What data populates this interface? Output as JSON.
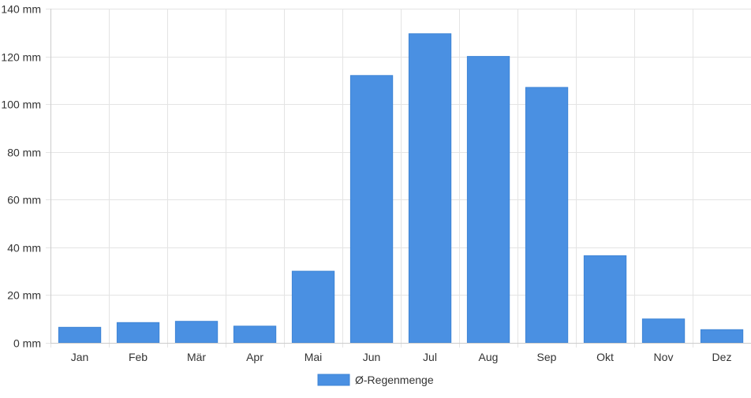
{
  "chart_data": {
    "type": "bar",
    "categories": [
      "Jan",
      "Feb",
      "Mär",
      "Apr",
      "Mai",
      "Jun",
      "Jul",
      "Aug",
      "Sep",
      "Okt",
      "Nov",
      "Dez"
    ],
    "series": [
      {
        "name": "Ø-Regenmenge",
        "values": [
          6.5,
          8.5,
          9,
          7,
          30,
          112,
          129.5,
          120,
          107,
          36.5,
          10,
          5.5
        ],
        "color": "#4a90e2"
      }
    ],
    "ylim": [
      0,
      140
    ],
    "yticks": [
      0,
      20,
      40,
      60,
      80,
      100,
      120,
      140
    ],
    "ytick_suffix": " mm",
    "grid": true,
    "legend_position": "bottom"
  }
}
